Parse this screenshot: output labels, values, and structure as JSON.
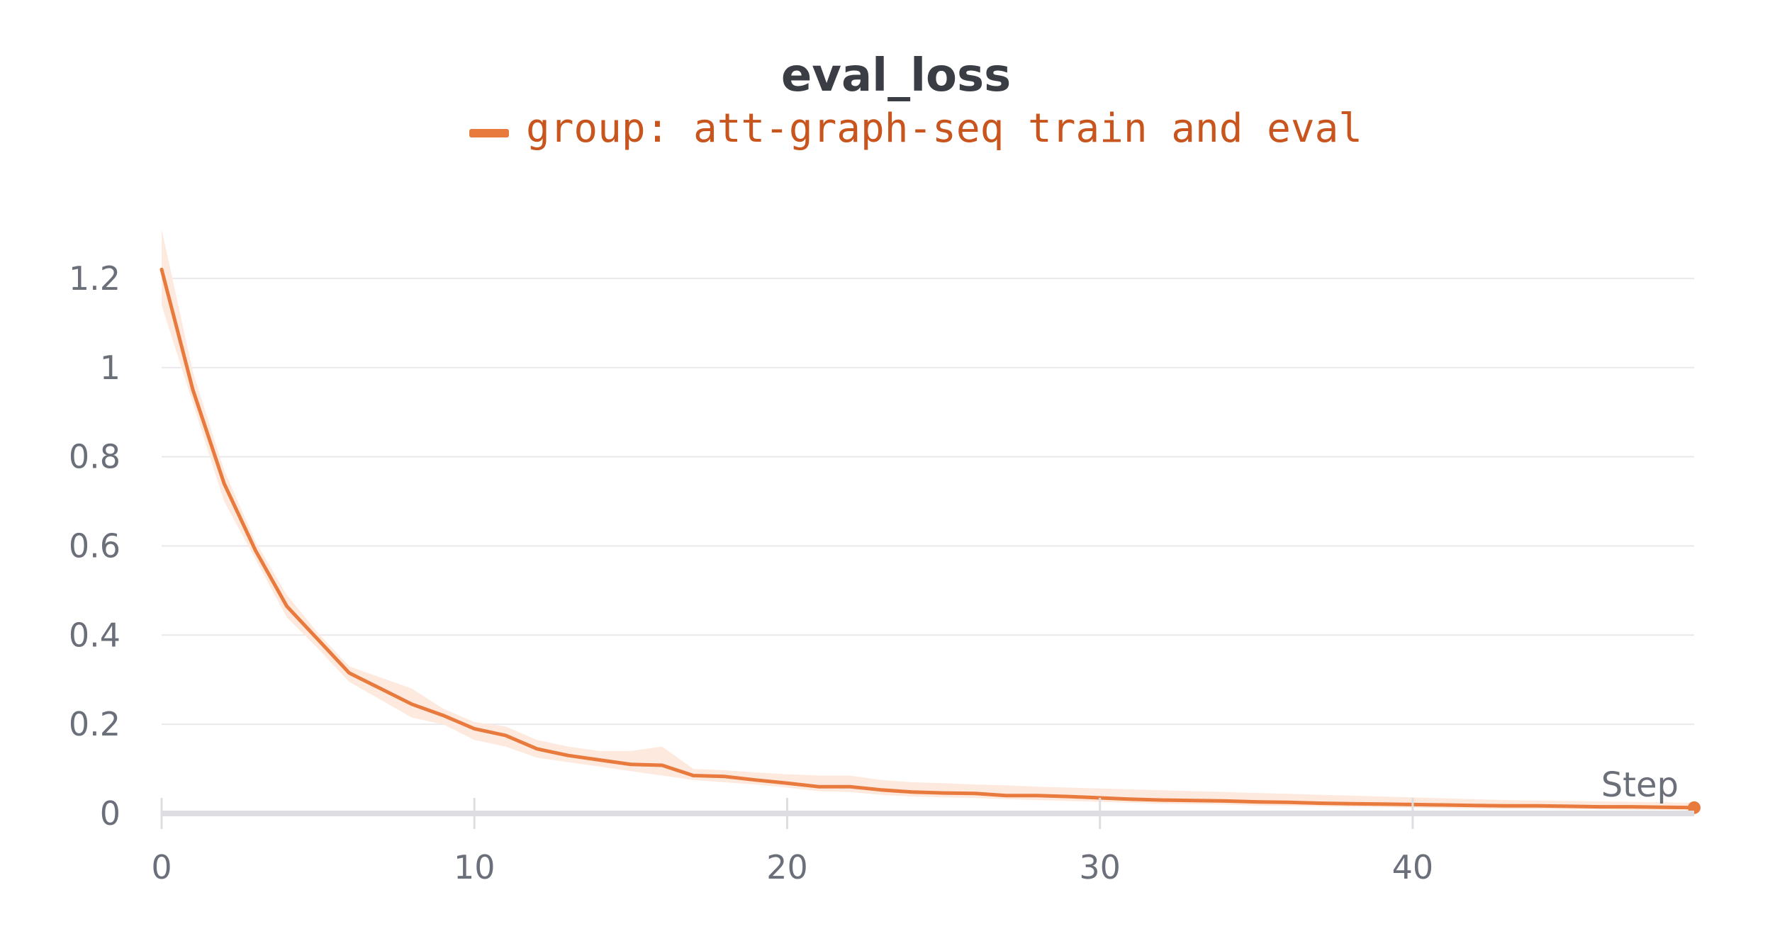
{
  "chart_data": {
    "type": "line",
    "title": "eval_loss",
    "xlabel": "Step",
    "ylabel": "",
    "xlim": [
      0,
      49
    ],
    "ylim": [
      0,
      1.3
    ],
    "x_ticks": [
      "0",
      "10",
      "20",
      "30",
      "40"
    ],
    "y_ticks": [
      "0",
      "0.2",
      "0.4",
      "0.6",
      "0.8",
      "1",
      "1.2"
    ],
    "grid": true,
    "legend_position": "top-center",
    "series": [
      {
        "name": "group: att-graph-seq train and eval",
        "color": "#e87a3e",
        "band_color": "#fde9dd",
        "x": [
          0,
          1,
          2,
          3,
          4,
          5,
          6,
          7,
          8,
          9,
          10,
          11,
          12,
          13,
          14,
          15,
          16,
          17,
          18,
          19,
          20,
          21,
          22,
          23,
          24,
          25,
          26,
          27,
          28,
          29,
          30,
          31,
          32,
          33,
          34,
          35,
          36,
          37,
          38,
          39,
          40,
          41,
          42,
          43,
          44,
          45,
          46,
          47,
          48,
          49
        ],
        "values": [
          1.22,
          0.95,
          0.74,
          0.59,
          0.465,
          0.39,
          0.315,
          0.28,
          0.245,
          0.22,
          0.19,
          0.175,
          0.145,
          0.13,
          0.12,
          0.11,
          0.108,
          0.085,
          0.083,
          0.075,
          0.068,
          0.06,
          0.06,
          0.053,
          0.048,
          0.046,
          0.045,
          0.04,
          0.04,
          0.038,
          0.035,
          0.032,
          0.03,
          0.029,
          0.028,
          0.026,
          0.025,
          0.023,
          0.022,
          0.021,
          0.02,
          0.019,
          0.018,
          0.017,
          0.017,
          0.016,
          0.015,
          0.015,
          0.014,
          0.013
        ],
        "upper": [
          1.31,
          0.99,
          0.77,
          0.61,
          0.49,
          0.405,
          0.33,
          0.305,
          0.28,
          0.235,
          0.205,
          0.195,
          0.165,
          0.15,
          0.14,
          0.14,
          0.15,
          0.1,
          0.097,
          0.092,
          0.088,
          0.085,
          0.085,
          0.075,
          0.07,
          0.068,
          0.065,
          0.063,
          0.06,
          0.058,
          0.056,
          0.054,
          0.052,
          0.05,
          0.048,
          0.046,
          0.044,
          0.042,
          0.04,
          0.038,
          0.036,
          0.034,
          0.032,
          0.03,
          0.029,
          0.028,
          0.027,
          0.026,
          0.025,
          0.024
        ],
        "lower": [
          1.14,
          0.92,
          0.7,
          0.57,
          0.44,
          0.37,
          0.295,
          0.255,
          0.215,
          0.2,
          0.165,
          0.15,
          0.125,
          0.115,
          0.105,
          0.095,
          0.085,
          0.075,
          0.07,
          0.065,
          0.058,
          0.05,
          0.048,
          0.042,
          0.038,
          0.036,
          0.035,
          0.032,
          0.03,
          0.028,
          0.026,
          0.024,
          0.022,
          0.021,
          0.02,
          0.018,
          0.017,
          0.016,
          0.015,
          0.014,
          0.013,
          0.012,
          0.011,
          0.01,
          0.01,
          0.009,
          0.009,
          0.008,
          0.008,
          0.007
        ]
      }
    ]
  }
}
